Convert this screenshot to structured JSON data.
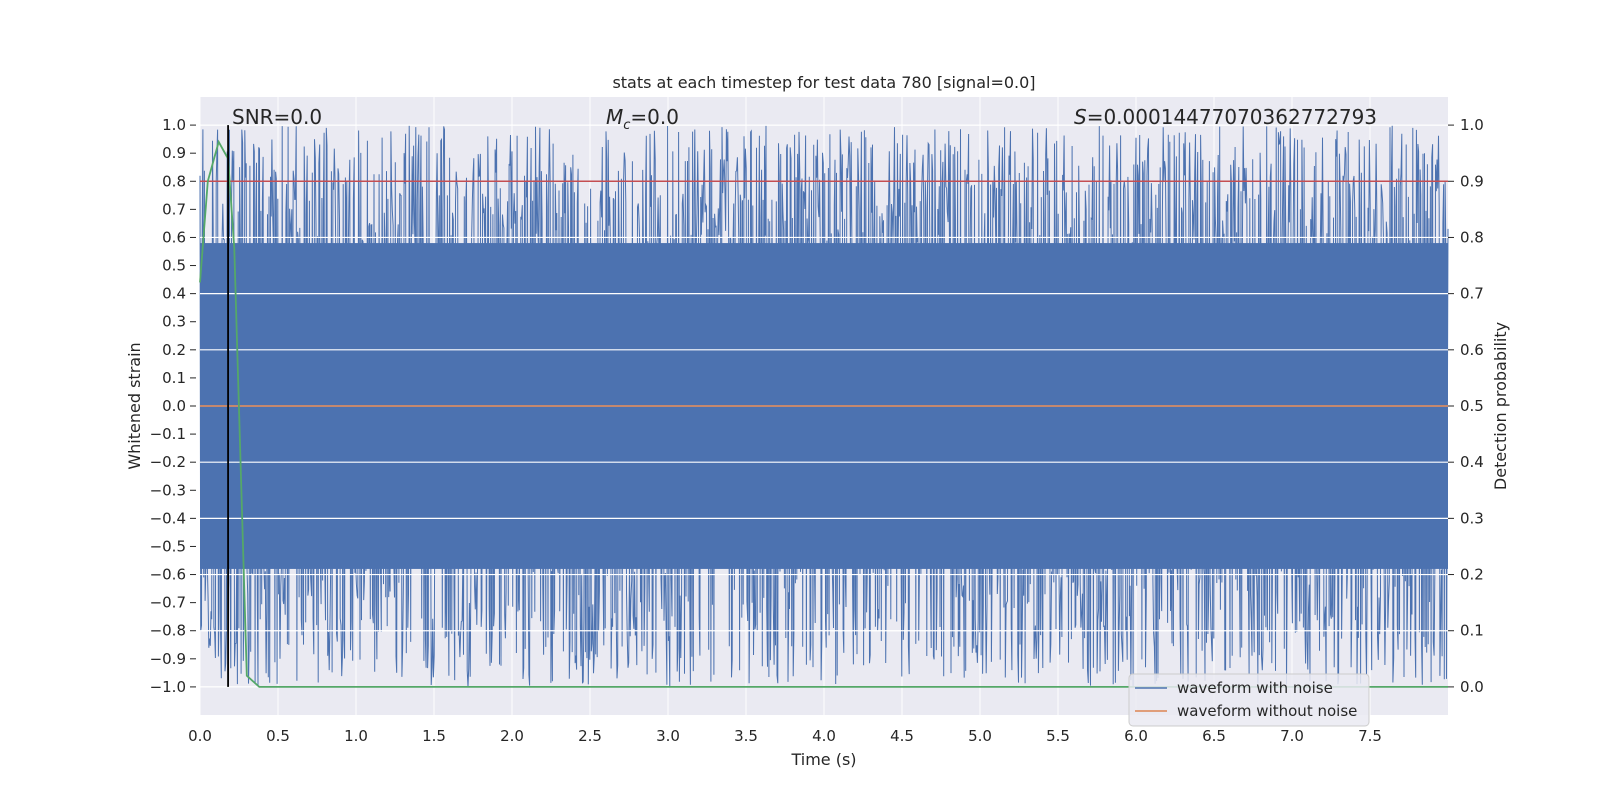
{
  "chart_data": {
    "type": "line",
    "title": "stats at each timestep for test data 780 [signal=0.0]",
    "xlabel": "Time (s)",
    "ylabel_left": "Whitened strain",
    "ylabel_right": "Detection probability",
    "xlim": [
      0.0,
      8.0
    ],
    "ylim_left": [
      -1.1,
      1.1
    ],
    "ylim_right": [
      -0.05,
      1.05
    ],
    "x_ticks": [
      "0.0",
      "0.5",
      "1.0",
      "1.5",
      "2.0",
      "2.5",
      "3.0",
      "3.5",
      "4.0",
      "4.5",
      "5.0",
      "5.5",
      "6.0",
      "6.5",
      "7.0",
      "7.5"
    ],
    "y_ticks_left": [
      "1.0",
      "0.9",
      "0.8",
      "0.7",
      "0.6",
      "0.5",
      "0.4",
      "0.3",
      "0.2",
      "0.1",
      "0.0",
      "−0.1",
      "−0.2",
      "−0.3",
      "−0.4",
      "−0.5",
      "−0.6",
      "−0.7",
      "−0.8",
      "−0.9",
      "−1.0"
    ],
    "y_ticks_right": [
      "1.0",
      "0.9",
      "0.8",
      "0.7",
      "0.6",
      "0.5",
      "0.4",
      "0.3",
      "0.2",
      "0.1",
      "0.0"
    ],
    "grid": true,
    "legend_position": "lower-right",
    "annotations": {
      "snr": "SNR=0.0",
      "mc_symbol": "M",
      "mc_sub": "c",
      "mc_value": "=0.0",
      "s_symbol": "S",
      "s_value": "=0.0001447707036277279​3"
    },
    "series": [
      {
        "name": "waveform with noise",
        "axis": "left",
        "color": "#4c72b0",
        "description_values": "noise roughly spanning -1.0 to 1.0 over 0-8 s"
      },
      {
        "name": "waveform without noise",
        "axis": "left",
        "color": "#dd8452",
        "x": [
          0.0,
          8.0
        ],
        "y": [
          0.0,
          0.0
        ]
      },
      {
        "axis": "right",
        "color": "#55a868",
        "x": [
          0.0,
          0.05,
          0.12,
          0.18,
          0.22,
          0.3,
          0.38,
          8.0
        ],
        "y": [
          0.72,
          0.9,
          0.97,
          0.94,
          0.78,
          0.02,
          0.0,
          0.0
        ]
      }
    ],
    "hlines_right": [
      {
        "y": 0.9,
        "color": "#c44e52"
      }
    ],
    "vline": {
      "x": 0.18,
      "color": "#000000"
    }
  }
}
